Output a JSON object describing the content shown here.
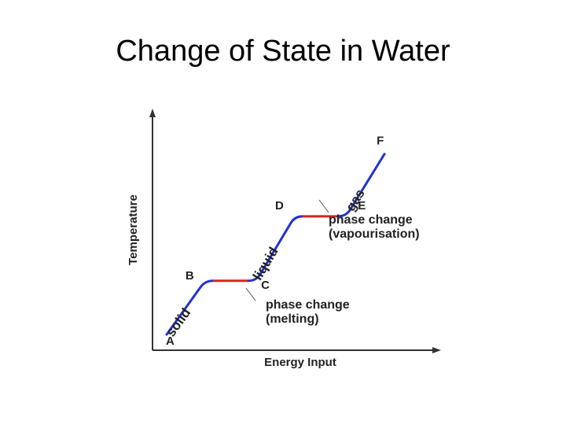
{
  "slide": {
    "title": "Change of State in Water"
  },
  "colors": {
    "heating": "#2233cc",
    "phase_change": "#dd2222",
    "axis": "#333333"
  },
  "chart_data": {
    "type": "line",
    "title": "Change of State in Water",
    "xlabel": "Energy Input",
    "ylabel": "Temperature",
    "ticks": "none",
    "grid": false,
    "points": [
      {
        "label": "A",
        "x": 0.0,
        "y": 0.0
      },
      {
        "label": "B",
        "x": 1.5,
        "y": 2.5
      },
      {
        "label": "C",
        "x": 3.5,
        "y": 2.5
      },
      {
        "label": "D",
        "x": 5.0,
        "y": 5.5
      },
      {
        "label": "E",
        "x": 7.0,
        "y": 5.5
      },
      {
        "label": "F",
        "x": 8.5,
        "y": 8.4
      }
    ],
    "segments": [
      {
        "from": "A",
        "to": "B",
        "label": "solid",
        "kind": "heating"
      },
      {
        "from": "B",
        "to": "C",
        "label": "",
        "kind": "phase_change"
      },
      {
        "from": "C",
        "to": "D",
        "label": "liquid",
        "kind": "heating"
      },
      {
        "from": "D",
        "to": "E",
        "label": "",
        "kind": "phase_change"
      },
      {
        "from": "E",
        "to": "F",
        "label": "gas",
        "kind": "heating"
      }
    ],
    "annotations": [
      {
        "segment": "B-C",
        "lines": [
          "phase change",
          "(melting)"
        ]
      },
      {
        "segment": "D-E",
        "lines": [
          "phase change",
          "(vapourisation)"
        ]
      }
    ]
  }
}
